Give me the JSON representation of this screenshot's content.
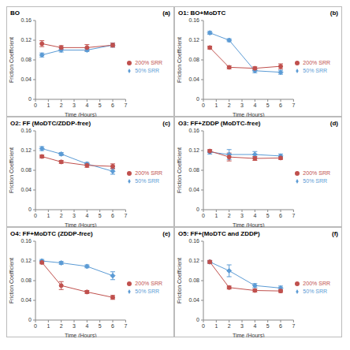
{
  "chart_data": [
    {
      "type": "line",
      "title": "BO",
      "annotation": "(a)",
      "x_label": "Time (Hours)",
      "y_label": "Friction Coefficient",
      "x": [
        0.5,
        2,
        4,
        6
      ],
      "xlim": [
        0,
        7
      ],
      "xticks": [
        0,
        1,
        2,
        3,
        4,
        5,
        6,
        7
      ],
      "ylim": [
        0,
        0.16
      ],
      "yticks": [
        0,
        0.04,
        0.08,
        0.12,
        0.16
      ],
      "grid": false,
      "legend": "right",
      "series": [
        {
          "name": "50% SRR",
          "color": "#5b9bd5",
          "marker": "diamond",
          "values": [
            0.09,
            0.1,
            0.1,
            0.11
          ],
          "errors": [
            0.004,
            0.004,
            0.003,
            0.004
          ]
        },
        {
          "name": "200% SRR",
          "color": "#c0504d",
          "marker": "circle",
          "values": [
            0.113,
            0.105,
            0.105,
            0.11
          ],
          "errors": [
            0.006,
            0.004,
            0.006,
            0.004
          ]
        }
      ]
    },
    {
      "type": "line",
      "title": "O1: BO+MoDTC",
      "annotation": "(b)",
      "x_label": "Time (Hours)",
      "y_label": "Friction Coefficient",
      "x": [
        0.5,
        2,
        4,
        6
      ],
      "xlim": [
        0,
        7
      ],
      "xticks": [
        0,
        1,
        2,
        3,
        4,
        5,
        6,
        7
      ],
      "ylim": [
        0,
        0.16
      ],
      "yticks": [
        0,
        0.04,
        0.08,
        0.12,
        0.16
      ],
      "grid": false,
      "legend": "right",
      "series": [
        {
          "name": "50% SRR",
          "color": "#5b9bd5",
          "marker": "diamond",
          "values": [
            0.135,
            0.12,
            0.058,
            0.055
          ],
          "errors": [
            0.003,
            0.003,
            0.004,
            0.004
          ]
        },
        {
          "name": "200% SRR",
          "color": "#c0504d",
          "marker": "circle",
          "values": [
            0.105,
            0.065,
            0.063,
            0.067
          ],
          "errors": [
            0.003,
            0.003,
            0.003,
            0.005
          ]
        }
      ]
    },
    {
      "type": "line",
      "title": "O2: FF (MoDTC/ZDDP-free)",
      "annotation": "(c)",
      "x_label": "Time (Hours)",
      "y_label": "Friction Coefficient",
      "x": [
        0.5,
        2,
        4,
        6
      ],
      "xlim": [
        0,
        7
      ],
      "xticks": [
        0,
        1,
        2,
        3,
        4,
        5,
        6,
        7
      ],
      "ylim": [
        0,
        0.16
      ],
      "yticks": [
        0,
        0.04,
        0.08,
        0.12,
        0.16
      ],
      "grid": false,
      "legend": "right",
      "series": [
        {
          "name": "50% SRR",
          "color": "#5b9bd5",
          "marker": "diamond",
          "values": [
            0.124,
            0.113,
            0.093,
            0.078
          ],
          "errors": [
            0.004,
            0.003,
            0.003,
            0.006
          ]
        },
        {
          "name": "200% SRR",
          "color": "#c0504d",
          "marker": "circle",
          "values": [
            0.108,
            0.097,
            0.09,
            0.088
          ],
          "errors": [
            0.003,
            0.003,
            0.004,
            0.005
          ]
        }
      ]
    },
    {
      "type": "line",
      "title": "O3: FF+ZDDP (MoDTC-free)",
      "annotation": "(d)",
      "x_label": "Time (Hours)",
      "y_label": "Friction Coefficient",
      "x": [
        0.5,
        2,
        4,
        6
      ],
      "xlim": [
        0,
        7
      ],
      "xticks": [
        0,
        1,
        2,
        3,
        4,
        5,
        6,
        7
      ],
      "ylim": [
        0,
        0.16
      ],
      "yticks": [
        0,
        0.04,
        0.08,
        0.12,
        0.16
      ],
      "grid": false,
      "legend": "right",
      "series": [
        {
          "name": "50% SRR",
          "color": "#5b9bd5",
          "marker": "diamond",
          "values": [
            0.117,
            0.112,
            0.112,
            0.109
          ],
          "errors": [
            0.004,
            0.01,
            0.006,
            0.004
          ]
        },
        {
          "name": "200% SRR",
          "color": "#c0504d",
          "marker": "circle",
          "values": [
            0.119,
            0.107,
            0.104,
            0.105
          ],
          "errors": [
            0.003,
            0.008,
            0.004,
            0.003
          ]
        }
      ]
    },
    {
      "type": "line",
      "title": "O4: FF+MoDTC (ZDDP-free)",
      "annotation": "(e)",
      "x_label": "Time (Hours)",
      "y_label": "Friction Coefficient",
      "x": [
        0.5,
        2,
        4,
        6
      ],
      "xlim": [
        0,
        7
      ],
      "xticks": [
        0,
        1,
        2,
        3,
        4,
        5,
        6,
        7
      ],
      "ylim": [
        0,
        0.16
      ],
      "yticks": [
        0,
        0.04,
        0.08,
        0.12,
        0.16
      ],
      "grid": false,
      "legend": "right",
      "series": [
        {
          "name": "50% SRR",
          "color": "#5b9bd5",
          "marker": "diamond",
          "values": [
            0.12,
            0.116,
            0.109,
            0.09
          ],
          "errors": [
            0.003,
            0.003,
            0.003,
            0.008
          ]
        },
        {
          "name": "200% SRR",
          "color": "#c0504d",
          "marker": "circle",
          "values": [
            0.117,
            0.07,
            0.057,
            0.046
          ],
          "errors": [
            0.003,
            0.008,
            0.003,
            0.004
          ]
        }
      ]
    },
    {
      "type": "line",
      "title": "O5: FF+(MoDTC and ZDDP)",
      "annotation": "(f)",
      "x_label": "Time (Hours)",
      "y_label": "Friction Coefficient",
      "x": [
        0.5,
        2,
        4,
        6
      ],
      "xlim": [
        0,
        7
      ],
      "xticks": [
        0,
        1,
        2,
        3,
        4,
        5,
        6,
        7
      ],
      "ylim": [
        0,
        0.16
      ],
      "yticks": [
        0,
        0.04,
        0.08,
        0.12,
        0.16
      ],
      "grid": false,
      "legend": "right",
      "series": [
        {
          "name": "50% SRR",
          "color": "#5b9bd5",
          "marker": "diamond",
          "values": [
            0.118,
            0.1,
            0.07,
            0.065
          ],
          "errors": [
            0.003,
            0.012,
            0.004,
            0.004
          ]
        },
        {
          "name": "200% SRR",
          "color": "#c0504d",
          "marker": "circle",
          "values": [
            0.118,
            0.066,
            0.06,
            0.059
          ],
          "errors": [
            0.003,
            0.003,
            0.003,
            0.003
          ]
        }
      ]
    }
  ]
}
